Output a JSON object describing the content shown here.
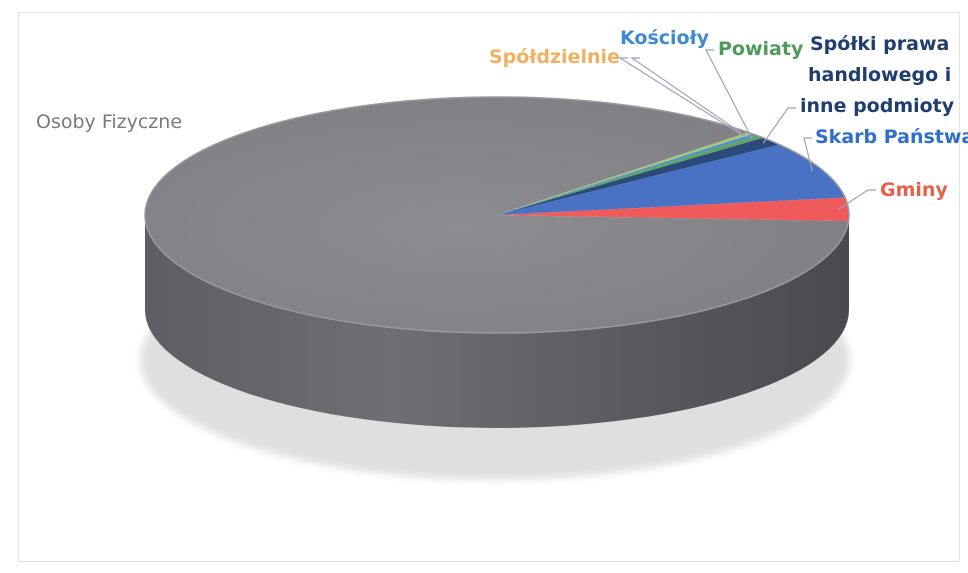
{
  "chart_data": {
    "type": "pie",
    "style": "3d",
    "title": "",
    "slices": [
      {
        "label": "Gminy",
        "value": 3.2,
        "color": "#f05a5a"
      },
      {
        "label": "Skarb Państwa",
        "value": 7.8,
        "color": "#4a72c4"
      },
      {
        "label": "Spółki prawa handlowego i inne podmioty",
        "value": 1.2,
        "color": "#2b4a7a"
      },
      {
        "label": "Powiaty",
        "value": 0.4,
        "color": "#5fa35f"
      },
      {
        "label": "Kościoły",
        "value": 0.3,
        "color": "#4a90d0"
      },
      {
        "label": "Spółdzielnie",
        "value": 0.3,
        "color": "#a8c878"
      },
      {
        "label": "Osoby Fizyczne",
        "value": 86.8,
        "color": "#8a8a8e"
      }
    ],
    "label_colors": {
      "Gminy": "#e8604c",
      "Skarb Państwa": "#2f6fc9",
      "Spółki prawa handlowego i inne podmioty": "#1f3d6e",
      "Powiaty": "#4f9a5a",
      "Kościoły": "#3f8ad0",
      "Spółdzielnie": "#f0b060",
      "Osoby Fizyczne": "#7a7a7a"
    },
    "legend": "none"
  },
  "labels": {
    "osoby_fizyczne": "Osoby Fizyczne",
    "spoldzielnie": "Spółdzielnie",
    "koscioly": "Kościoły",
    "powiaty": "Powiaty",
    "spolki_line1": "Spółki prawa",
    "spolki_line2": "handlowego i",
    "spolki_line3": "inne podmioty",
    "skarb_panstwa": "Skarb Państwa",
    "gminy": "Gminy"
  }
}
